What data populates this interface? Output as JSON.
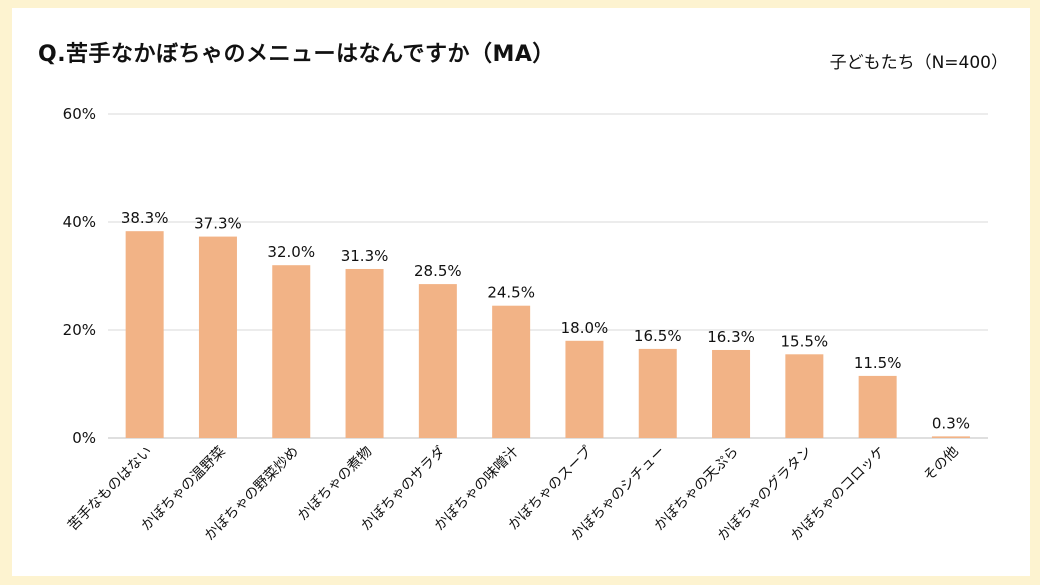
{
  "chart_data": {
    "type": "bar",
    "title": "Q.苦手なかぼちゃのメニューはなんですか（MA）",
    "subtitle": "子どもたち（N=400）",
    "categories": [
      "苦手なものはない",
      "かぼちゃの温野菜",
      "かぼちゃの野菜炒め",
      "かぼちゃの煮物",
      "かぼちゃのサラダ",
      "かぼちゃの味噌汁",
      "かぼちゃのスープ",
      "かぼちゃのシチュー",
      "かぼちゃの天ぷら",
      "かぼちゃのグラタン",
      "かぼちゃのコロッケ",
      "その他"
    ],
    "values": [
      38.3,
      37.3,
      32.0,
      31.3,
      28.5,
      24.5,
      18.0,
      16.5,
      16.3,
      15.5,
      11.5,
      0.3
    ],
    "value_labels": [
      "38.3%",
      "37.3%",
      "32.0%",
      "31.3%",
      "28.5%",
      "24.5%",
      "18.0%",
      "16.5%",
      "16.3%",
      "15.5%",
      "11.5%",
      "0.3%"
    ],
    "yticks": [
      0,
      20,
      40,
      60
    ],
    "ytick_labels": [
      "0%",
      "20%",
      "40%",
      "60%"
    ],
    "ylim": [
      0,
      60
    ],
    "xlabel": "",
    "ylabel": "",
    "grid": true,
    "bar_color": "#f2b386"
  }
}
